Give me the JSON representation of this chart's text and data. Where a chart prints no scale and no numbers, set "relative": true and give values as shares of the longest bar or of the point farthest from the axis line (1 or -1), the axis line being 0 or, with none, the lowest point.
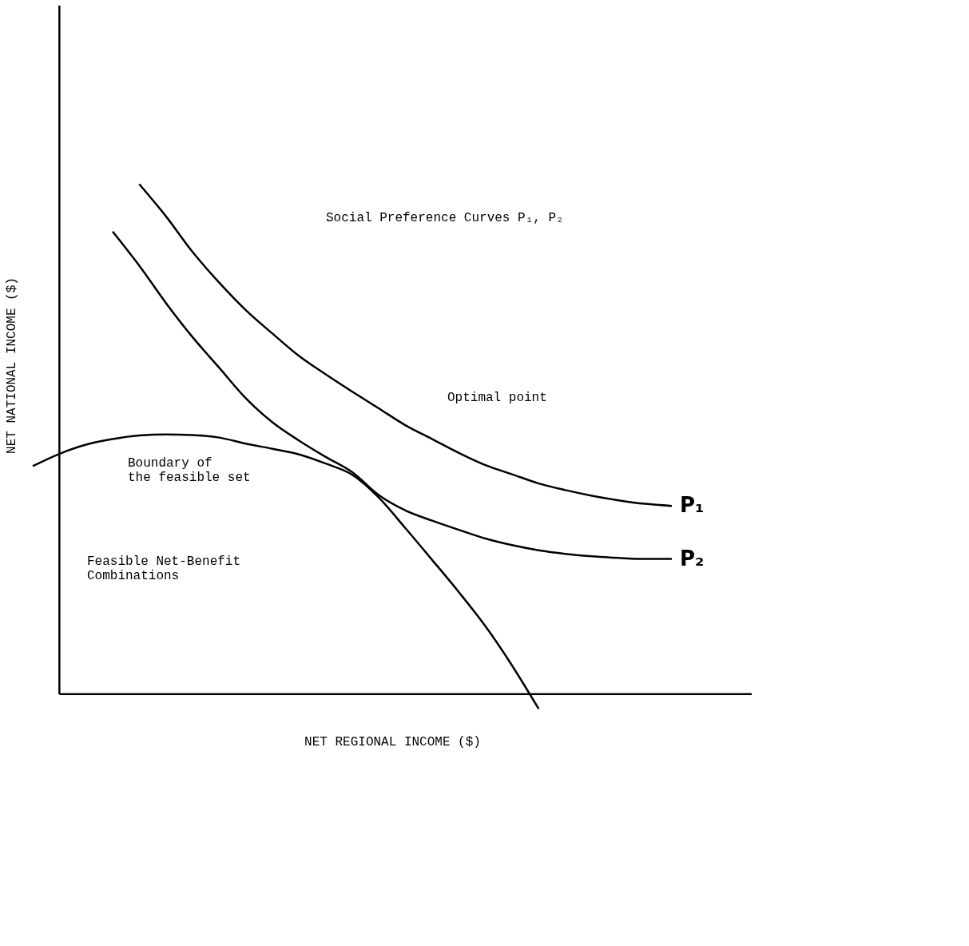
{
  "chart_data": {
    "type": "line",
    "relative": true,
    "legend": false,
    "grid": false,
    "marker": "none",
    "line_style": "solid",
    "xlabel": "NET REGIONAL INCOME  ($)",
    "ylabel": "NET NATIONAL INCOME ($)",
    "categories": [
      null,
      null,
      null,
      null,
      null,
      null,
      null,
      null,
      null,
      null,
      null,
      null,
      null,
      null,
      null,
      null,
      null,
      null,
      null,
      null,
      null,
      null,
      null,
      null,
      null
    ],
    "series": [
      {
        "name": "P₁",
        "color": "#000000",
        "values": [
          null,
          null,
          null,
          null,
          1.0,
          0.937,
          0.867,
          0.807,
          0.753,
          0.707,
          0.663,
          0.627,
          0.593,
          0.56,
          0.527,
          0.5,
          0.473,
          0.449,
          0.431,
          0.413,
          0.4,
          0.389,
          0.38,
          0.373,
          0.369
        ]
      },
      {
        "name": "P₂",
        "color": "#000000",
        "values": [
          null,
          null,
          null,
          0.907,
          0.84,
          0.767,
          0.7,
          0.64,
          0.58,
          0.533,
          0.497,
          0.465,
          0.435,
          0.39,
          0.36,
          0.34,
          0.322,
          0.305,
          0.292,
          0.282,
          0.275,
          0.27,
          0.267,
          0.265,
          0.265
        ]
      },
      {
        "color": "#000000",
        "values": [
          0.447,
          0.471,
          0.489,
          0.5,
          0.507,
          0.509,
          0.508,
          0.503,
          0.491,
          0.481,
          0.47,
          0.452,
          0.43,
          0.385,
          0.325,
          0.263,
          0.2,
          0.133,
          0.056,
          -0.029,
          null,
          null,
          null,
          null,
          null
        ]
      }
    ],
    "annotations": [
      "Social Preference Curves P₁, P₂",
      "Optimal point",
      "Boundary of\nthe feasible set",
      "Feasible Net-Benefit\nCombinations"
    ]
  }
}
